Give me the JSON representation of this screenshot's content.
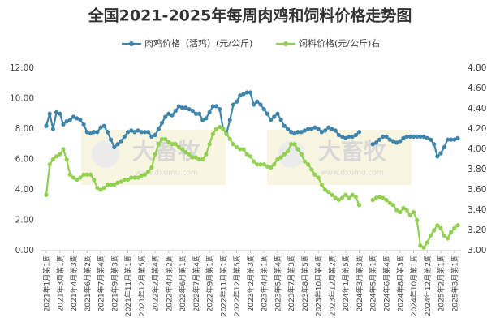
{
  "chart_data": {
    "type": "line",
    "title": "全国2021-2025年每周肉鸡和饲料价格走势图",
    "watermark": {
      "text": "大畜牧",
      "url": "www.dxumu.com"
    },
    "categories": [
      "2021年1月第1周",
      null,
      null,
      null,
      "2021年3月第1周",
      null,
      null,
      null,
      "2021年4月第3周",
      null,
      null,
      null,
      "2021年6月第2周",
      null,
      null,
      null,
      "2021年7月第4周",
      null,
      null,
      null,
      "2021年9月第3周",
      null,
      null,
      null,
      "2021年11月第1周",
      null,
      null,
      null,
      "2021年12月第5周",
      null,
      null,
      null,
      "2022年2月第4周",
      null,
      null,
      null,
      "2022年4月第2周",
      null,
      null,
      null,
      "2022年6月第1周",
      null,
      null,
      null,
      "2022年7月第4周",
      null,
      null,
      null,
      "2022年9月第1周",
      null,
      null,
      null,
      "2022年11月第1周",
      null,
      null,
      null,
      "2022年12月第5周",
      null,
      null,
      null,
      "2023年2月第3周",
      null,
      null,
      null,
      "2023年4月第1周",
      null,
      null,
      null,
      "2023年5月第4周",
      null,
      null,
      null,
      "2023年7月第3周",
      null,
      null,
      null,
      "2023年8月第5周",
      null,
      null,
      null,
      "2023年10月第4周",
      null,
      null,
      null,
      "2023年12月第2周",
      null,
      null,
      null,
      "2024年1月第5周",
      null,
      null,
      null,
      "2024年3月第3周",
      null,
      null,
      null,
      "2024年5月第1周",
      null,
      null,
      null,
      "2024年6月第4周",
      null,
      null,
      null,
      "2024年8月第3周",
      null,
      null,
      null,
      "2024年10月第1周",
      null,
      null,
      null,
      "2024年12月第2周",
      null,
      null,
      null,
      "2025年2月第1周",
      null,
      null,
      null,
      "2025年3月第1周",
      null
    ],
    "series": [
      {
        "name": "肉鸡价格（活鸡）(元/公斤)",
        "color": "#3f84aa",
        "axis": "y",
        "values": [
          8.2,
          9.0,
          8.0,
          9.1,
          9.0,
          8.3,
          8.5,
          8.6,
          8.8,
          8.7,
          8.6,
          8.3,
          7.8,
          7.7,
          7.8,
          7.8,
          8.1,
          8.2,
          7.8,
          7.3,
          6.8,
          7.0,
          7.2,
          7.5,
          7.8,
          7.9,
          7.8,
          7.9,
          7.8,
          7.8,
          7.8,
          7.5,
          7.6,
          8.0,
          8.4,
          8.8,
          9.0,
          8.9,
          9.2,
          9.5,
          9.4,
          9.4,
          9.3,
          9.2,
          9.0,
          9.0,
          8.6,
          8.7,
          9.1,
          9.5,
          9.5,
          9.3,
          8.0,
          7.7,
          8.6,
          9.6,
          9.8,
          10.2,
          10.3,
          10.4,
          10.4,
          9.6,
          9.8,
          9.6,
          9.3,
          9.0,
          8.6,
          8.8,
          9.0,
          8.6,
          8.2,
          8.0,
          7.8,
          7.7,
          7.8,
          7.8,
          7.9,
          8.0,
          8.0,
          8.1,
          8.0,
          7.8,
          7.9,
          8.1,
          8.0,
          7.9,
          7.6,
          7.5,
          7.4,
          7.5,
          7.5,
          7.6,
          7.8,
          null,
          null,
          null,
          7.0,
          7.1,
          7.3,
          7.5,
          7.5,
          7.3,
          7.2,
          7.1,
          7.2,
          7.4,
          7.5,
          7.5,
          7.5,
          7.5,
          7.5,
          7.5,
          7.4,
          7.3,
          7.0,
          6.2,
          6.4,
          6.8,
          7.3,
          7.3,
          7.3,
          7.4
        ]
      },
      {
        "name": "饲料价格(元/公斤)右",
        "color": "#92d050",
        "axis": "y2",
        "values": [
          3.55,
          3.85,
          3.9,
          3.93,
          3.95,
          4.0,
          3.9,
          3.75,
          3.72,
          3.7,
          3.72,
          3.75,
          3.75,
          3.75,
          3.7,
          3.62,
          3.6,
          3.62,
          3.65,
          3.65,
          3.65,
          3.67,
          3.68,
          3.7,
          3.7,
          3.72,
          3.72,
          3.72,
          3.74,
          3.75,
          3.78,
          3.82,
          3.95,
          4.05,
          4.1,
          4.1,
          4.07,
          4.05,
          4.05,
          4.02,
          4.0,
          3.97,
          3.95,
          3.92,
          3.92,
          3.9,
          3.9,
          3.95,
          4.05,
          4.15,
          4.2,
          4.22,
          4.2,
          4.15,
          4.1,
          4.05,
          4.02,
          4.0,
          4.0,
          3.95,
          3.93,
          3.88,
          3.85,
          3.85,
          3.85,
          3.83,
          3.82,
          3.85,
          3.9,
          3.92,
          3.95,
          3.98,
          4.05,
          4.05,
          4.0,
          3.95,
          3.88,
          3.85,
          3.8,
          3.75,
          3.72,
          3.65,
          3.6,
          3.58,
          3.55,
          3.52,
          3.5,
          3.52,
          3.55,
          3.52,
          3.55,
          3.53,
          3.45,
          null,
          null,
          null,
          3.5,
          3.52,
          3.53,
          3.52,
          3.5,
          3.47,
          3.45,
          3.4,
          3.38,
          3.42,
          3.4,
          3.35,
          3.38,
          3.3,
          3.05,
          3.03,
          3.08,
          3.15,
          3.2,
          3.25,
          3.22,
          3.15,
          3.12,
          3.18,
          3.22,
          3.25
        ]
      }
    ],
    "ylim": [
      0,
      12
    ],
    "yticks": [
      {
        "value": 0,
        "label": "0.00"
      },
      {
        "value": 2,
        "label": "2.00"
      },
      {
        "value": 4,
        "label": "4.00"
      },
      {
        "value": 6,
        "label": "6.00"
      },
      {
        "value": 8,
        "label": "8.00"
      },
      {
        "value": 10,
        "label": "10.00"
      },
      {
        "value": 12,
        "label": "12.00"
      }
    ],
    "y2lim": [
      3.0,
      4.8
    ],
    "y2ticks": [
      {
        "value": 3.0,
        "label": "3.00"
      },
      {
        "value": 3.2,
        "label": "3.20"
      },
      {
        "value": 3.4,
        "label": "3.40"
      },
      {
        "value": 3.6,
        "label": "3.60"
      },
      {
        "value": 3.8,
        "label": "3.80"
      },
      {
        "value": 4.0,
        "label": "4.00"
      },
      {
        "value": 4.2,
        "label": "4.20"
      },
      {
        "value": 4.4,
        "label": "4.40"
      },
      {
        "value": 4.6,
        "label": "4.60"
      },
      {
        "value": 4.8,
        "label": "4.80"
      }
    ],
    "legend": "top",
    "grid": false
  }
}
